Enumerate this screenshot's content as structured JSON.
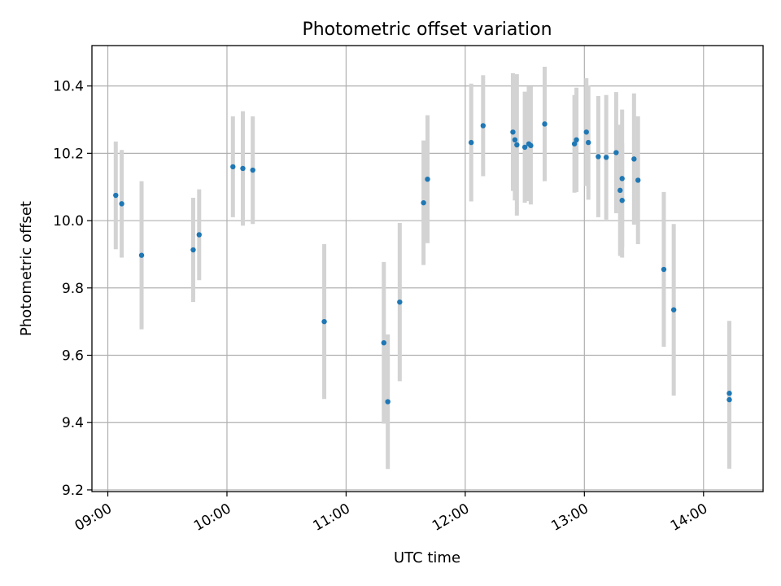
{
  "chart_data": {
    "type": "scatter",
    "title": "Photometric offset variation",
    "xlabel": "UTC time",
    "ylabel": "Photometric offset",
    "xlim": [
      "08:52",
      "14:30"
    ],
    "ylim": [
      9.195,
      10.52
    ],
    "grid": true,
    "x_ticks": [
      "09:00",
      "10:00",
      "11:00",
      "12:00",
      "13:00",
      "14:00"
    ],
    "y_ticks": [
      9.2,
      9.4,
      9.6,
      9.8,
      10.0,
      10.2,
      10.4
    ],
    "y_tick_labels": [
      "9.2",
      "9.4",
      "9.6",
      "9.8",
      "10.0",
      "10.2",
      "10.4"
    ],
    "colors": {
      "points": "#1f77b4",
      "errorbars": "#d3d3d3",
      "grid": "#b0b0b0"
    },
    "points": [
      {
        "x": "09:04",
        "y": 10.075,
        "err": 0.16
      },
      {
        "x": "09:07",
        "y": 10.05,
        "err": 0.16
      },
      {
        "x": "09:17",
        "y": 9.897,
        "err": 0.22
      },
      {
        "x": "09:43",
        "y": 9.913,
        "err": 0.155
      },
      {
        "x": "09:46",
        "y": 9.958,
        "err": 0.135
      },
      {
        "x": "10:03",
        "y": 10.16,
        "err": 0.15
      },
      {
        "x": "10:08",
        "y": 10.155,
        "err": 0.17
      },
      {
        "x": "10:13",
        "y": 10.15,
        "err": 0.16
      },
      {
        "x": "10:49",
        "y": 9.7,
        "err": 0.23
      },
      {
        "x": "11:19",
        "y": 9.637,
        "err": 0.24
      },
      {
        "x": "11:21",
        "y": 9.462,
        "err": 0.2
      },
      {
        "x": "11:27",
        "y": 9.758,
        "err": 0.235
      },
      {
        "x": "11:39",
        "y": 10.053,
        "err": 0.185
      },
      {
        "x": "11:41",
        "y": 10.123,
        "err": 0.19
      },
      {
        "x": "12:03",
        "y": 10.232,
        "err": 0.175
      },
      {
        "x": "12:09",
        "y": 10.282,
        "err": 0.15
      },
      {
        "x": "12:24",
        "y": 10.263,
        "err": 0.175
      },
      {
        "x": "12:25",
        "y": 10.24,
        "err": 0.18
      },
      {
        "x": "12:26",
        "y": 10.225,
        "err": 0.21
      },
      {
        "x": "12:30",
        "y": 10.218,
        "err": 0.165
      },
      {
        "x": "12:32",
        "y": 10.228,
        "err": 0.17
      },
      {
        "x": "12:33",
        "y": 10.223,
        "err": 0.175
      },
      {
        "x": "12:40",
        "y": 10.287,
        "err": 0.17
      },
      {
        "x": "12:55",
        "y": 10.228,
        "err": 0.145
      },
      {
        "x": "12:56",
        "y": 10.24,
        "err": 0.155
      },
      {
        "x": "13:01",
        "y": 10.263,
        "err": 0.16
      },
      {
        "x": "13:02",
        "y": 10.232,
        "err": 0.17
      },
      {
        "x": "13:07",
        "y": 10.19,
        "err": 0.18
      },
      {
        "x": "13:11",
        "y": 10.188,
        "err": 0.185
      },
      {
        "x": "13:16",
        "y": 10.202,
        "err": 0.18
      },
      {
        "x": "13:18",
        "y": 10.09,
        "err": 0.195
      },
      {
        "x": "13:19",
        "y": 10.06,
        "err": 0.17
      },
      {
        "x": "13:19",
        "y": 10.125,
        "err": 0.205
      },
      {
        "x": "13:25",
        "y": 10.183,
        "err": 0.195
      },
      {
        "x": "13:27",
        "y": 10.12,
        "err": 0.19
      },
      {
        "x": "13:40",
        "y": 9.855,
        "err": 0.23
      },
      {
        "x": "13:45",
        "y": 9.735,
        "err": 0.255
      },
      {
        "x": "14:13",
        "y": 9.487,
        "err": 0.215
      },
      {
        "x": "14:13",
        "y": 9.468,
        "err": 0.205
      }
    ]
  }
}
